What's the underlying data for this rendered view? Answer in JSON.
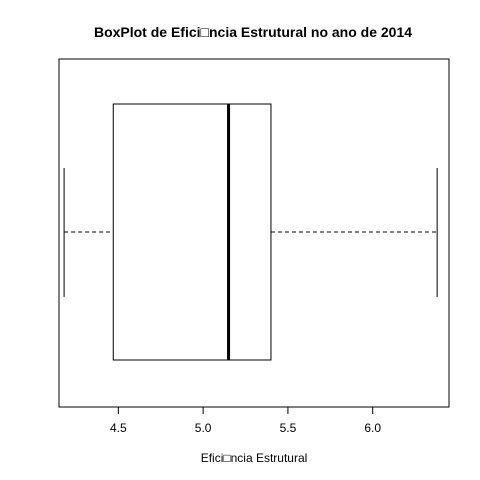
{
  "chart_data": {
    "type": "boxplot",
    "orientation": "horizontal",
    "title": "BoxPlot de Efici□ncia Estrutural no ano de 2014",
    "xlabel": "Efici□ncia Estrutural",
    "ylabel": "",
    "xlim": [
      4.15,
      6.45
    ],
    "x_ticks": [
      4.5,
      5.0,
      5.5,
      6.0
    ],
    "x_tick_labels": [
      "4.5",
      "5.0",
      "5.5",
      "6.0"
    ],
    "box": {
      "min": 4.18,
      "q1": 4.47,
      "median": 5.15,
      "q3": 5.4,
      "max": 6.38
    },
    "grid": false,
    "legend": "none"
  }
}
